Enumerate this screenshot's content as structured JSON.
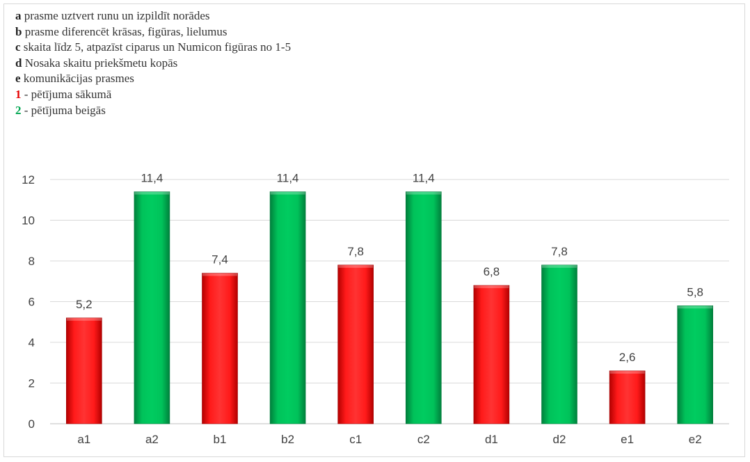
{
  "legend": {
    "items": [
      {
        "key": "a",
        "text": "prasme uztvert runu un izpildīt norādes",
        "color": "#222222"
      },
      {
        "key": "b",
        "text": "prasme diferencēt krāsas, figūras, lielumus",
        "color": "#222222"
      },
      {
        "key": "c",
        "text": "skaita līdz 5, atpazīst ciparus un Numicon figūras no 1-5",
        "color": "#222222"
      },
      {
        "key": "d",
        "text": "Nosaka skaitu priekšmetu kopās",
        "color": "#222222"
      },
      {
        "key": "e",
        "text": "komunikācijas prasmes",
        "color": "#222222"
      },
      {
        "key": "1",
        "text": "- pētījuma sākumā",
        "color": "#e60000"
      },
      {
        "key": "2",
        "text": "- pētījuma beigās",
        "color": "#00a651"
      }
    ]
  },
  "chart_data": {
    "type": "bar",
    "categories": [
      "a1",
      "a2",
      "b1",
      "b2",
      "c1",
      "c2",
      "d1",
      "d2",
      "e1",
      "e2"
    ],
    "values": [
      5.2,
      11.4,
      7.4,
      11.4,
      7.8,
      11.4,
      6.8,
      7.8,
      2.6,
      5.8
    ],
    "data_labels": [
      "5,2",
      "11,4",
      "7,4",
      "11,4",
      "7,8",
      "11,4",
      "6,8",
      "7,8",
      "2,6",
      "5,8"
    ],
    "bar_colors": [
      "#e60000",
      "#00b050",
      "#e60000",
      "#00b050",
      "#e60000",
      "#00b050",
      "#e60000",
      "#00b050",
      "#e60000",
      "#00b050"
    ],
    "yticks": [
      0,
      2,
      4,
      6,
      8,
      10,
      12
    ],
    "ylim": [
      0,
      12
    ],
    "grid": true,
    "title": "",
    "xlabel": "",
    "ylabel": ""
  }
}
